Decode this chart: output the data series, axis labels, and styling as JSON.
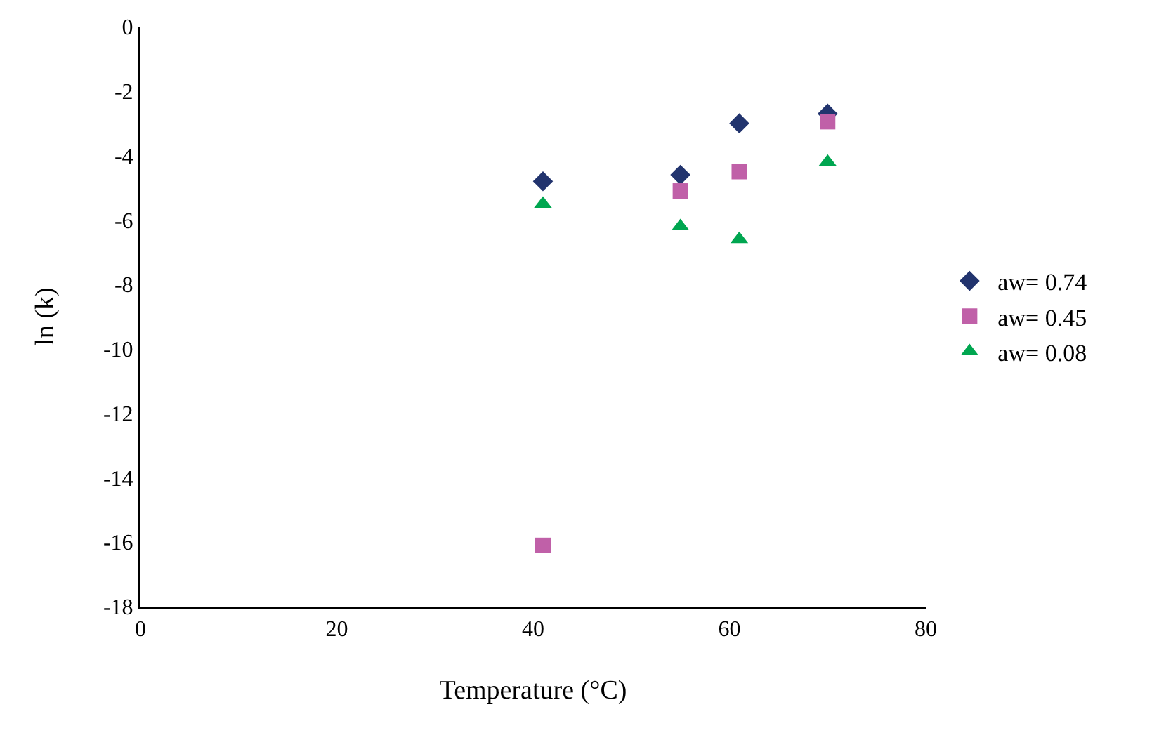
{
  "chart_data": {
    "type": "scatter",
    "xlabel": "Temperature (°C)",
    "ylabel": "ln (k)",
    "x": [
      41,
      55,
      61,
      70
    ],
    "series": [
      {
        "name": "aw= 0.74",
        "color": "#22346e",
        "marker": "diamond",
        "values": [
          -4.8,
          -4.6,
          -3.0,
          -2.7
        ]
      },
      {
        "name": "aw= 0.45",
        "color": "#c060a8",
        "marker": "square",
        "values": [
          -16.1,
          -5.1,
          -4.5,
          -2.95
        ]
      },
      {
        "name": "aw= 0.08",
        "color": "#00a650",
        "marker": "triangle",
        "values": [
          -5.5,
          -6.2,
          -6.6,
          -4.2
        ]
      }
    ],
    "xlim": [
      0,
      80
    ],
    "xticks": [
      0,
      20,
      40,
      60,
      80
    ],
    "ylim": [
      -18,
      0
    ],
    "yticks": [
      -18,
      -16,
      -14,
      -12,
      -10,
      -8,
      -6,
      -4,
      -2,
      0
    ],
    "legend": "right"
  }
}
